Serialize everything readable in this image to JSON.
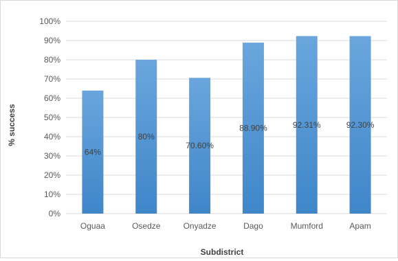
{
  "chart_data": {
    "type": "bar",
    "categories": [
      "Oguaa",
      "Osedze",
      "Onyadze",
      "Dago",
      "Mumford",
      "Apam"
    ],
    "values": [
      64,
      80,
      70.6,
      88.9,
      92.31,
      92.3
    ],
    "data_labels": [
      "64%",
      "80%",
      "70.60%",
      "88.90%",
      "92.31%",
      "92.30%"
    ],
    "xlabel": "Subdistrict",
    "ylabel": "% success",
    "ylim": [
      0,
      100
    ],
    "y_ticks": [
      0,
      10,
      20,
      30,
      40,
      50,
      60,
      70,
      80,
      90,
      100
    ],
    "y_tick_labels": [
      "0%",
      "10%",
      "20%",
      "30%",
      "40%",
      "50%",
      "60%",
      "70%",
      "80%",
      "90%",
      "100%"
    ],
    "grid": true,
    "legend": "none",
    "bar_color": "#5b9bd5",
    "bar_color_top": "#6aa6dd",
    "bar_color_bottom": "#3f86c9",
    "grid_color": "#d9d9d9"
  }
}
